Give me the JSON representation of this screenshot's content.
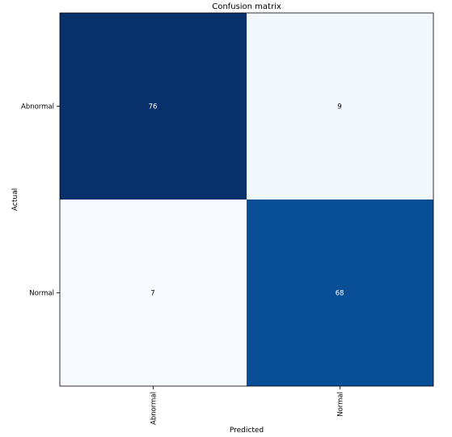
{
  "chart_data": {
    "type": "heatmap",
    "title": "Confusion matrix",
    "xlabel": "Predicted",
    "ylabel": "Actual",
    "x_categories": [
      "Abnormal",
      "Normal"
    ],
    "y_categories": [
      "Abnormal",
      "Normal"
    ],
    "values": [
      [
        76,
        9
      ],
      [
        7,
        68
      ]
    ],
    "colormap": "Blues",
    "color_low": "#f7fbff",
    "color_high": "#08306b",
    "text_color_dark_cell": "#ffffff",
    "text_color_light_cell": "#000000"
  }
}
